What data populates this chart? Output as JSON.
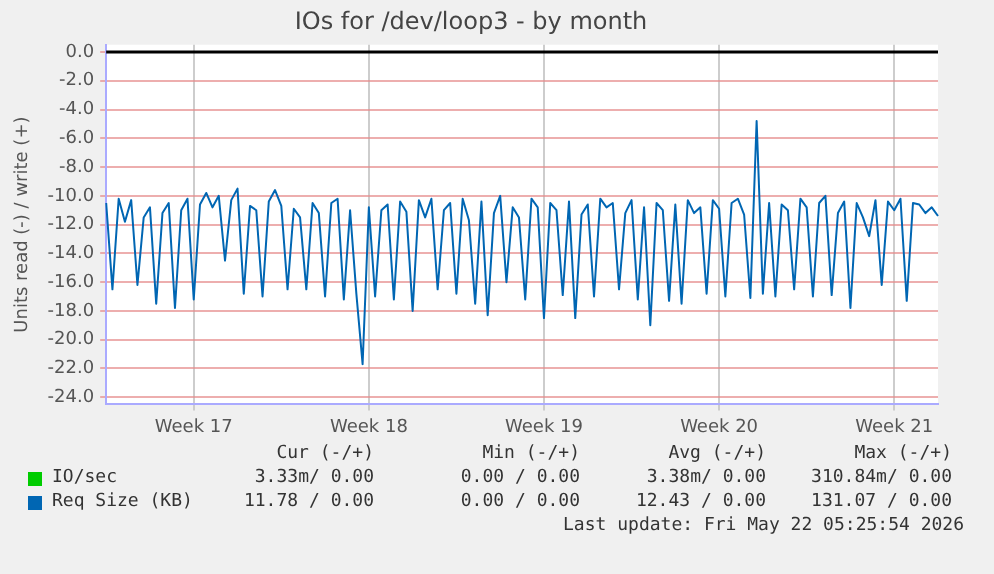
{
  "chart_data": {
    "type": "line",
    "title": "IOs for /dev/loop3 - by month",
    "ylabel": "Units read (-) / write (+)",
    "categories": [
      null,
      null,
      null,
      null,
      null,
      null,
      null,
      null,
      null,
      null,
      null,
      null,
      null,
      null,
      "Week 17",
      null,
      null,
      null,
      null,
      null,
      null,
      null,
      null,
      null,
      null,
      null,
      null,
      null,
      null,
      null,
      null,
      null,
      null,
      null,
      null,
      null,
      null,
      null,
      null,
      null,
      null,
      null,
      "Week 18",
      null,
      null,
      null,
      null,
      null,
      null,
      null,
      null,
      null,
      null,
      null,
      null,
      null,
      null,
      null,
      null,
      null,
      null,
      null,
      null,
      null,
      null,
      null,
      null,
      null,
      null,
      null,
      "Week 19",
      null,
      null,
      null,
      null,
      null,
      null,
      null,
      null,
      null,
      null,
      null,
      null,
      null,
      null,
      null,
      null,
      null,
      null,
      null,
      null,
      null,
      null,
      null,
      null,
      null,
      null,
      null,
      "Week 20",
      null,
      null,
      null,
      null,
      null,
      null,
      null,
      null,
      null,
      null,
      null,
      null,
      null,
      null,
      null,
      null,
      null,
      null,
      null,
      null,
      null,
      null,
      null,
      null,
      null,
      null,
      null,
      "Week 21",
      null,
      null,
      null,
      null,
      null,
      null,
      null
    ],
    "series": [
      {
        "name": "IO/sec",
        "color": "#00cc00",
        "values": [
          null,
          null,
          null,
          null,
          null,
          null,
          null,
          null,
          null,
          null,
          null,
          null,
          null,
          null,
          null,
          null,
          null,
          null,
          null,
          null,
          null,
          null,
          null,
          null,
          null,
          null,
          null,
          null,
          null,
          null,
          null,
          null,
          null,
          null,
          null,
          null,
          null,
          null,
          null,
          null,
          null,
          null,
          null,
          null,
          null,
          null,
          null,
          null,
          null,
          null,
          null,
          null,
          null,
          null,
          null,
          null,
          null,
          null,
          null,
          null,
          null,
          null,
          null,
          null,
          null,
          null,
          null,
          null,
          null,
          null,
          null,
          null,
          null,
          null,
          null,
          null,
          null,
          null,
          null,
          null,
          null,
          null,
          null,
          null,
          null,
          null,
          null,
          null,
          null,
          null,
          null,
          null,
          null,
          null,
          null,
          null,
          null,
          null,
          null,
          null,
          null,
          null,
          null,
          null,
          null,
          null,
          null,
          null,
          null,
          null,
          null,
          null,
          null,
          null,
          null,
          null,
          null,
          null,
          null,
          null,
          null,
          null,
          null,
          null,
          null,
          null,
          null,
          null,
          null,
          null,
          null,
          null,
          null,
          null
        ]
      },
      {
        "name": "Req Size (KB)",
        "color": "#0066b3",
        "values": [
          -10.5,
          -16.5,
          -10.2,
          -11.8,
          -10.3,
          -16.2,
          -11.5,
          -10.8,
          -17.5,
          -11.2,
          -10.5,
          -17.8,
          -11.0,
          -10.2,
          -17.2,
          -10.6,
          -9.8,
          -10.8,
          -10.0,
          -14.5,
          -10.3,
          -9.5,
          -16.8,
          -10.7,
          -11.0,
          -17.0,
          -10.4,
          -9.6,
          -10.7,
          -16.5,
          -10.9,
          -11.5,
          -16.5,
          -10.5,
          -11.2,
          -17.0,
          -10.5,
          -10.2,
          -17.2,
          -11.0,
          -16.8,
          -21.7,
          -10.8,
          -17.0,
          -11.0,
          -10.6,
          -17.2,
          -10.4,
          -11.1,
          -18.0,
          -10.3,
          -11.5,
          -10.2,
          -16.5,
          -11.0,
          -10.5,
          -16.8,
          -10.2,
          -11.7,
          -17.5,
          -10.4,
          -18.3,
          -11.2,
          -10.0,
          -16.0,
          -10.8,
          -11.5,
          -17.2,
          -10.2,
          -10.8,
          -18.5,
          -10.5,
          -11.0,
          -16.9,
          -10.4,
          -18.5,
          -11.3,
          -10.6,
          -17.0,
          -10.2,
          -10.8,
          -10.5,
          -16.5,
          -11.2,
          -10.3,
          -17.2,
          -10.8,
          -19.0,
          -10.5,
          -11.0,
          -17.3,
          -10.6,
          -17.5,
          -10.3,
          -11.2,
          -10.8,
          -16.8,
          -10.3,
          -10.9,
          -17.0,
          -10.5,
          -10.2,
          -11.3,
          -17.1,
          -4.8,
          -16.8,
          -10.5,
          -17.0,
          -10.6,
          -11.0,
          -16.5,
          -10.2,
          -10.8,
          -17.0,
          -10.5,
          -10.0,
          -16.9,
          -11.2,
          -10.4,
          -17.8,
          -10.5,
          -11.5,
          -12.8,
          -10.3,
          -16.2,
          -10.4,
          -11.0,
          -10.2,
          -17.3,
          -10.5,
          -10.6,
          -11.2,
          -10.8,
          -11.4
        ]
      }
    ],
    "ylim": [
      -24.5,
      0.5
    ],
    "yticks": [
      {
        "value": 0,
        "label": "0.0"
      },
      {
        "value": -2,
        "label": "-2.0"
      },
      {
        "value": -4,
        "label": "-4.0"
      },
      {
        "value": -6,
        "label": "-6.0"
      },
      {
        "value": -8,
        "label": "-8.0"
      },
      {
        "value": -10,
        "label": "-10.0"
      },
      {
        "value": -12,
        "label": "-12.0"
      },
      {
        "value": -14,
        "label": "-14.0"
      },
      {
        "value": -16,
        "label": "-16.0"
      },
      {
        "value": -18,
        "label": "-18.0"
      },
      {
        "value": -20,
        "label": "-20.0"
      },
      {
        "value": -22,
        "label": "-22.0"
      },
      {
        "value": -24,
        "label": "-24.0"
      }
    ],
    "grid": true,
    "legend": "bottom",
    "marker": "none",
    "line_style": "solid",
    "ref_lines": [
      {
        "axis": "y",
        "value": 0,
        "color": "#000000"
      }
    ],
    "annotations": [
      "Cur (-/+)",
      "Min (-/+)",
      "Avg (-/+)",
      "Max (-/+)",
      "3.33m/ 0.00",
      "0.00 / 0.00",
      "3.38m/ 0.00",
      "310.84m/ 0.00",
      "11.78 / 0.00",
      "0.00 / 0.00",
      "12.43 / 0.00",
      "131.07 / 0.00",
      "Last update: Fri May 22 05:25:54 2026"
    ]
  }
}
